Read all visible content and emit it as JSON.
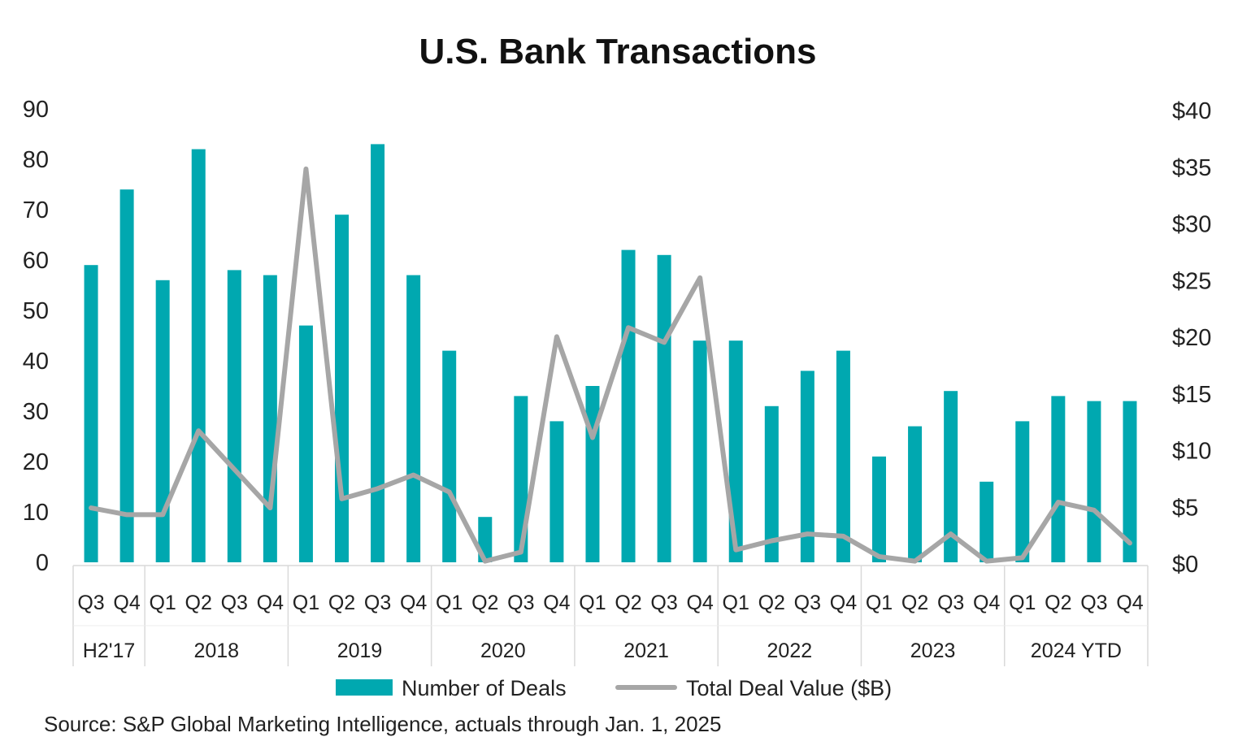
{
  "chart_data": {
    "type": "bar",
    "title": "U.S. Bank Transactions",
    "source": "Source: S&P Global Marketing Intelligence, actuals through Jan. 1, 2025",
    "groups": [
      {
        "label": "H2'17",
        "quarters": [
          "Q3",
          "Q4"
        ]
      },
      {
        "label": "2018",
        "quarters": [
          "Q1",
          "Q2",
          "Q3",
          "Q4"
        ]
      },
      {
        "label": "2019",
        "quarters": [
          "Q1",
          "Q2",
          "Q3",
          "Q4"
        ]
      },
      {
        "label": "2020",
        "quarters": [
          "Q1",
          "Q2",
          "Q3",
          "Q4"
        ]
      },
      {
        "label": "2021",
        "quarters": [
          "Q1",
          "Q2",
          "Q3",
          "Q4"
        ]
      },
      {
        "label": "2022",
        "quarters": [
          "Q1",
          "Q2",
          "Q3",
          "Q4"
        ]
      },
      {
        "label": "2023",
        "quarters": [
          "Q1",
          "Q2",
          "Q3",
          "Q4"
        ]
      },
      {
        "label": "2024 YTD",
        "quarters": [
          "Q1",
          "Q2",
          "Q3",
          "Q4"
        ]
      }
    ],
    "left_axis": {
      "ylim": [
        0,
        90
      ],
      "ticks": [
        "0",
        "10",
        "20",
        "30",
        "40",
        "50",
        "60",
        "70",
        "80",
        "90"
      ]
    },
    "right_axis": {
      "ylim": [
        0,
        40
      ],
      "ticks": [
        "$0",
        "$5",
        "$10",
        "$15",
        "$20",
        "$25",
        "$30",
        "$35",
        "$40"
      ]
    },
    "series": [
      {
        "name": "Number of Deals",
        "type": "bar",
        "axis": "left",
        "color": "#00A8B0",
        "values": [
          59,
          74,
          56,
          82,
          58,
          57,
          47,
          69,
          83,
          57,
          42,
          9,
          33,
          28,
          35,
          62,
          61,
          44,
          44,
          31,
          38,
          42,
          21,
          27,
          34,
          16,
          28,
          33,
          32,
          32
        ]
      },
      {
        "name": "Total Deal Value ($B)",
        "type": "line",
        "axis": "right",
        "color": "#A6A6A6",
        "values": [
          4.8,
          4.2,
          4.2,
          11.6,
          8.2,
          4.8,
          34.7,
          5.6,
          6.5,
          7.7,
          6.2,
          0.1,
          0.9,
          19.9,
          11.0,
          20.7,
          19.4,
          25.1,
          1.1,
          1.9,
          2.5,
          2.3,
          0.5,
          0.1,
          2.5,
          0.1,
          0.4,
          5.3,
          4.6,
          1.7
        ]
      }
    ],
    "grid": false,
    "legend": "bottom"
  }
}
